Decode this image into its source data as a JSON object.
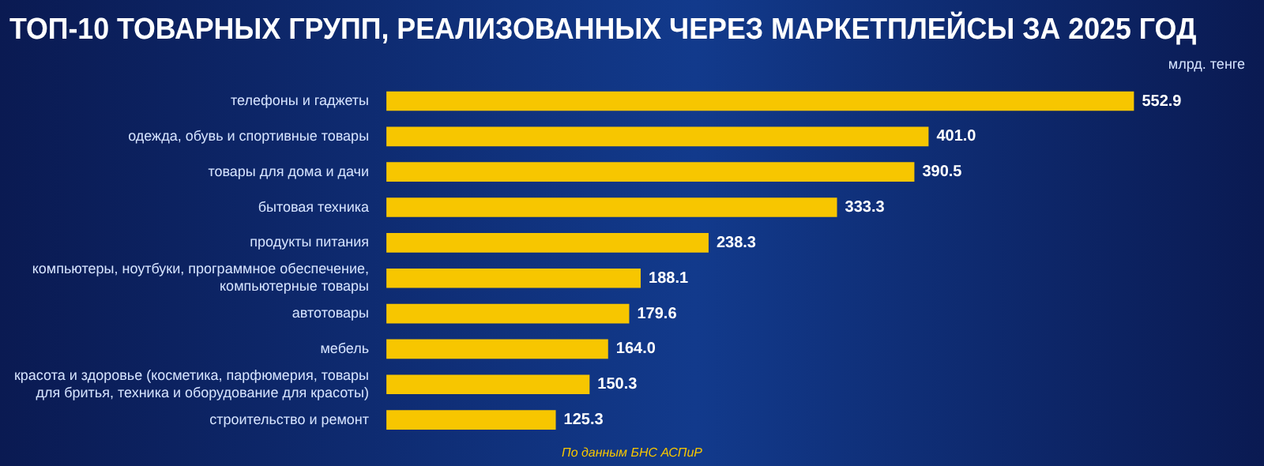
{
  "chart_data": {
    "type": "bar",
    "orientation": "horizontal",
    "title": "ТОП-10 ТОВАРНЫХ ГРУПП, РЕАЛИЗОВАННЫХ ЧЕРЕЗ МАРКЕТПЛЕЙСЫ ЗА 2025 ГОД",
    "categories": [
      "телефоны и гаджеты",
      "одежда, обувь и спортивные товары",
      "товары для дома и дачи",
      "бытовая техника",
      "продукты питания",
      "компьютеры, ноутбуки, программное обеспечение, компьютерные товары",
      "автотовары",
      "мебель",
      "красота и здоровье (косметика, парфюмерия, товары для бритья, техника и оборудование для красоты)",
      "строительство и ремонт"
    ],
    "values": [
      552.9,
      401.0,
      390.5,
      333.3,
      238.3,
      188.1,
      179.6,
      164.0,
      150.3,
      125.3
    ],
    "value_labels": [
      "552.9",
      "401.0",
      "390.5",
      "333.3",
      "238.3",
      "188.1",
      "179.6",
      "164.0",
      "150.3",
      "125.3"
    ],
    "color": "#f7c600",
    "tick_labels": "y",
    "annotations": [
      "млрд. тенге",
      "По данным БНС АСПиР"
    ]
  }
}
